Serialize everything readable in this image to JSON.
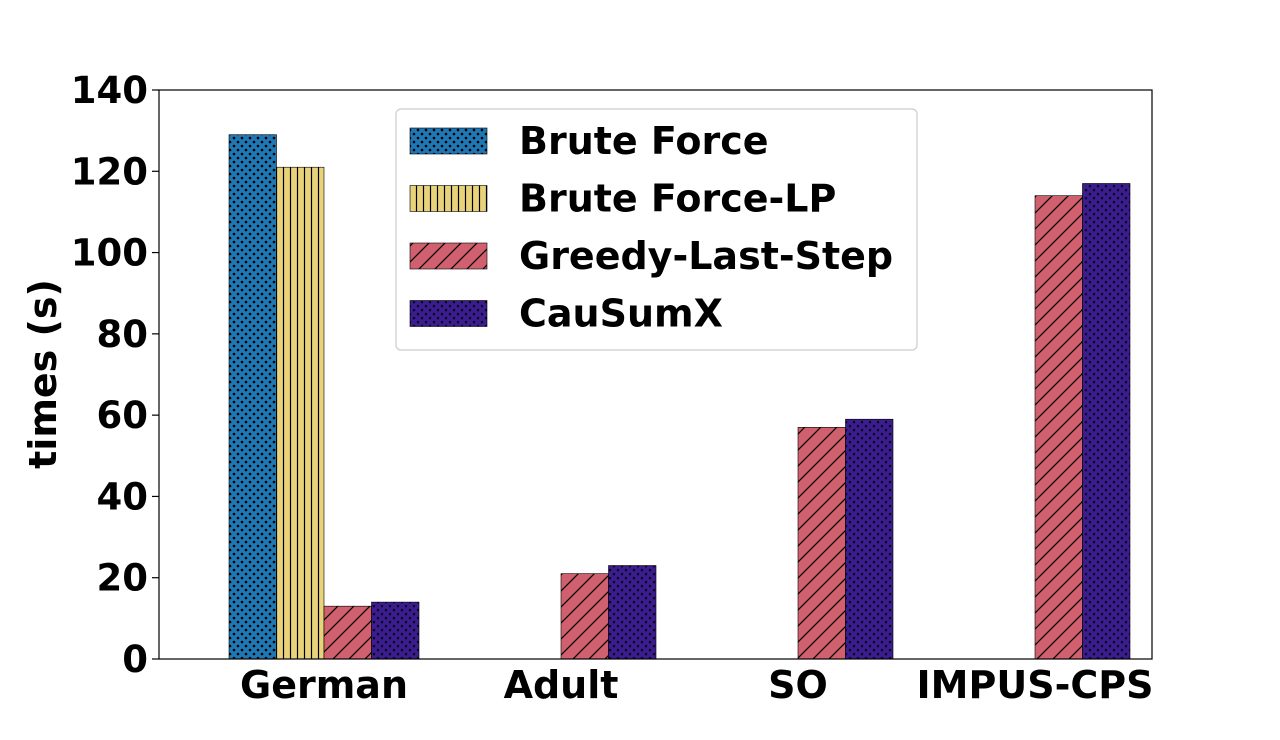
{
  "chart_data": {
    "type": "bar",
    "title": "",
    "xlabel": "",
    "ylabel": "times (s)",
    "ylim": [
      0,
      140
    ],
    "yticks": [
      0,
      20,
      40,
      60,
      80,
      100,
      120,
      140
    ],
    "categories": [
      "German",
      "Adult",
      "SO",
      "IMPUS-CPS"
    ],
    "grid": false,
    "legend_position": "top-center",
    "series": [
      {
        "name": "Brute Force",
        "color": "#1f77b4",
        "pattern": "dots",
        "values": [
          129,
          null,
          null,
          null
        ]
      },
      {
        "name": "Brute Force-LP",
        "color": "#e8d27a",
        "pattern": "vertical-lines",
        "values": [
          121,
          null,
          null,
          null
        ]
      },
      {
        "name": "Greedy-Last-Step",
        "color": "#d0606e",
        "pattern": "diagonal-lines",
        "values": [
          13,
          21,
          57,
          114
        ]
      },
      {
        "name": "CauSumX",
        "color": "#3b1d8f",
        "pattern": "stars",
        "values": [
          14,
          23,
          59,
          117
        ]
      }
    ]
  }
}
